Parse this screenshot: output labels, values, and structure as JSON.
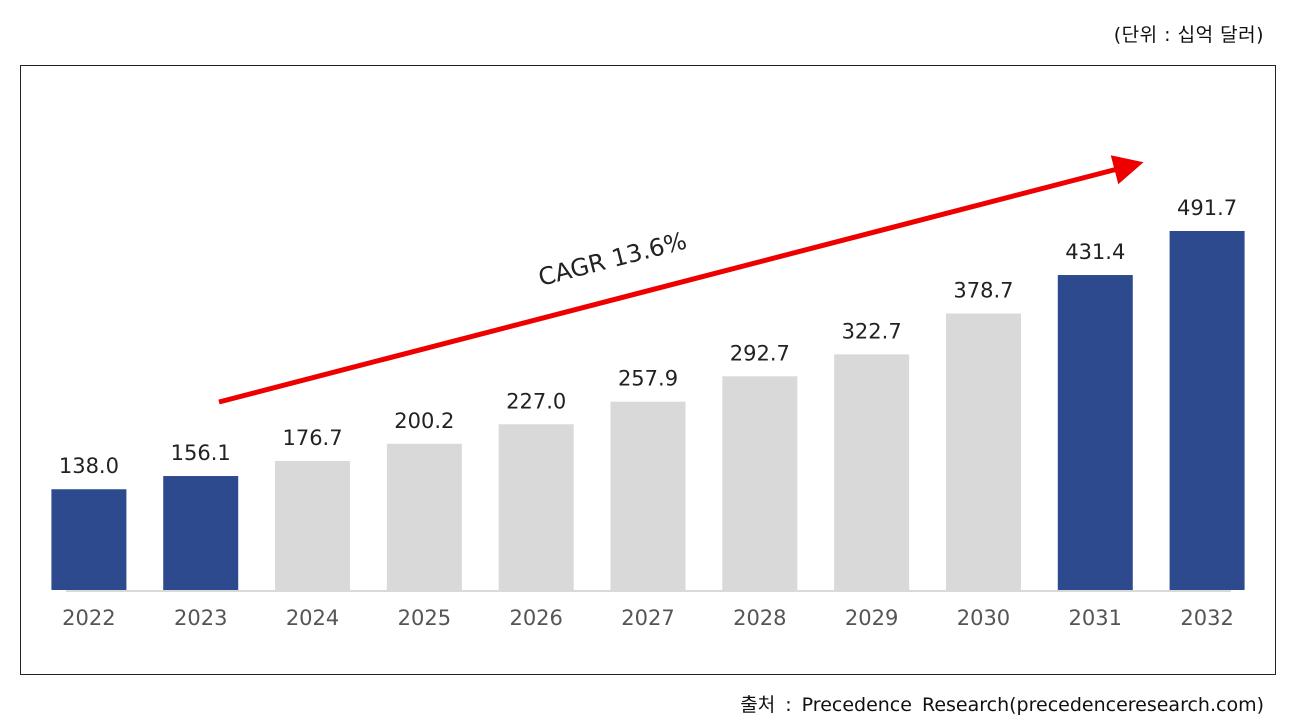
{
  "unit_label": "(단위 : 십억 달러)",
  "source_label": "출처 : Precedence Research(precedenceresearch.com)",
  "chart_data": {
    "type": "bar",
    "title": "",
    "xlabel": "",
    "ylabel": "",
    "ylim": [
      0,
      491.7
    ],
    "categories": [
      "2022",
      "2023",
      "2024",
      "2025",
      "2026",
      "2027",
      "2028",
      "2029",
      "2030",
      "2031",
      "2032"
    ],
    "values": [
      138.0,
      156.1,
      176.7,
      200.2,
      227.0,
      257.9,
      292.7,
      322.7,
      378.7,
      431.4,
      491.7
    ],
    "value_labels": [
      "138.0",
      "156.1",
      "176.7",
      "200.2",
      "227.0",
      "257.9",
      "292.7",
      "322.7",
      "378.7",
      "431.4",
      "491.7"
    ],
    "highlight": [
      true,
      true,
      false,
      false,
      false,
      false,
      false,
      false,
      false,
      true,
      true
    ],
    "colors": {
      "highlight": "#2e4a8f",
      "normal": "#d9d9d9",
      "axis": "#d9d9d9",
      "arrow": "#ee0000"
    },
    "annotation": "CAGR 13.6%"
  }
}
